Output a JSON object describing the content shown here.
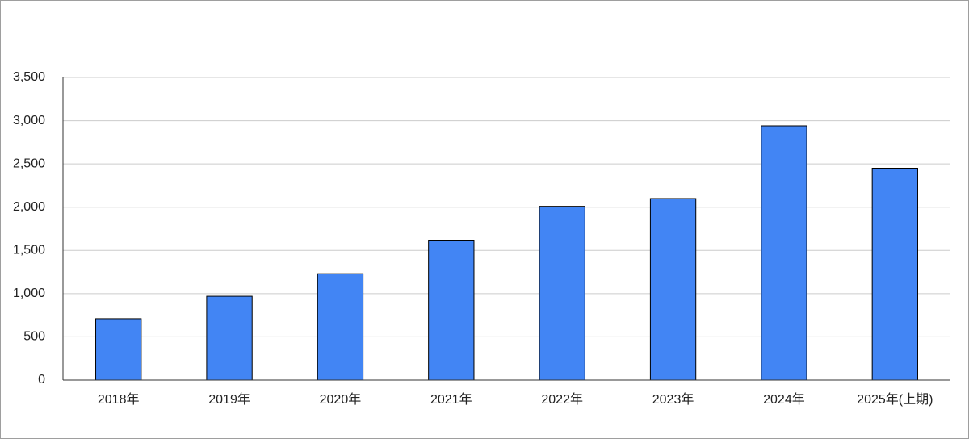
{
  "chart_data": {
    "type": "bar",
    "categories": [
      "2018年",
      "2019年",
      "2020年",
      "2021年",
      "2022年",
      "2023年",
      "2024年",
      "2025年(上期)"
    ],
    "values": [
      710,
      970,
      1230,
      1610,
      2010,
      2100,
      2940,
      2450
    ],
    "color": "#4285f4",
    "ylim": [
      0,
      3500
    ],
    "yticks": [
      0,
      500,
      {
        "value": 1000,
        "label": "1,000"
      },
      {
        "value": 1500,
        "label": "1,500"
      },
      {
        "value": 2000,
        "label": "2,000"
      },
      {
        "value": 2500,
        "label": "2,500"
      },
      {
        "value": 3000,
        "label": "3,000"
      },
      {
        "value": 3500,
        "label": "3,500"
      }
    ],
    "grid": true
  }
}
